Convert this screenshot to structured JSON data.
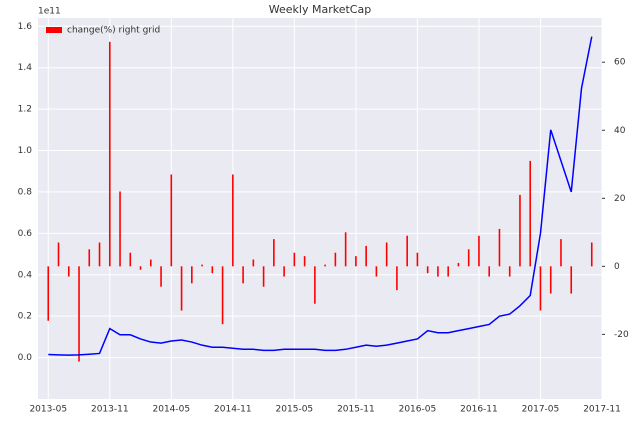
{
  "chart_data": {
    "type": "line",
    "title": "Weekly MarketCap",
    "y_offset_label": "1e11",
    "x": [
      "2013-05",
      "2013-06",
      "2013-07",
      "2013-08",
      "2013-09",
      "2013-10",
      "2013-11",
      "2013-12",
      "2014-01",
      "2014-02",
      "2014-03",
      "2014-04",
      "2014-05",
      "2014-06",
      "2014-07",
      "2014-08",
      "2014-09",
      "2014-10",
      "2014-11",
      "2014-12",
      "2015-01",
      "2015-02",
      "2015-03",
      "2015-04",
      "2015-05",
      "2015-06",
      "2015-07",
      "2015-08",
      "2015-09",
      "2015-10",
      "2015-11",
      "2015-12",
      "2016-01",
      "2016-02",
      "2016-03",
      "2016-04",
      "2016-05",
      "2016-06",
      "2016-07",
      "2016-08",
      "2016-09",
      "2016-10",
      "2016-11",
      "2016-12",
      "2017-01",
      "2017-02",
      "2017-03",
      "2017-04",
      "2017-05",
      "2017-06",
      "2017-07",
      "2017-08",
      "2017-09",
      "2017-10"
    ],
    "series": [
      {
        "color": "#0000ff",
        "axis": "y",
        "values": [
          0.015,
          0.013,
          0.012,
          0.013,
          0.016,
          0.02,
          0.14,
          0.11,
          0.11,
          0.09,
          0.075,
          0.07,
          0.08,
          0.085,
          0.075,
          0.06,
          0.05,
          0.05,
          0.045,
          0.04,
          0.04,
          0.035,
          0.035,
          0.04,
          0.04,
          0.04,
          0.04,
          0.035,
          0.035,
          0.04,
          0.05,
          0.06,
          0.055,
          0.06,
          0.07,
          0.08,
          0.09,
          0.13,
          0.12,
          0.12,
          0.13,
          0.14,
          0.15,
          0.16,
          0.2,
          0.21,
          0.25,
          0.3,
          0.6,
          1.1,
          0.95,
          0.8,
          1.3,
          1.55
        ]
      },
      {
        "name": "change(%) right grid",
        "type": "bar",
        "color": "#ff0000",
        "axis": "y2",
        "values": [
          -16,
          7,
          -3,
          -28,
          5,
          7,
          66,
          22,
          4,
          -1,
          2,
          -6,
          27,
          -13,
          -5,
          0.5,
          -2,
          -17,
          27,
          -5,
          2,
          -6,
          8,
          -3,
          4,
          3,
          -11,
          0.5,
          4,
          10,
          3,
          6,
          -3,
          7,
          -7,
          9,
          4,
          -2,
          -3,
          -3,
          1,
          5,
          9,
          -3,
          11,
          -3,
          21,
          31,
          -13,
          -8,
          8,
          -8,
          0,
          7
        ]
      }
    ],
    "xlim": [
      "2013-04",
      "2017-11"
    ],
    "xticks": [
      "2013-05",
      "2013-11",
      "2014-05",
      "2014-11",
      "2015-05",
      "2015-11",
      "2016-05",
      "2016-11",
      "2017-05",
      "2017-11"
    ],
    "ylim": [
      -0.2,
      1.64
    ],
    "yticks": [
      {
        "value": 0,
        "label": "0.0"
      },
      {
        "value": 0.2,
        "label": "0.2"
      },
      {
        "value": 0.4,
        "label": "0.4"
      },
      {
        "value": 0.6,
        "label": "0.6"
      },
      {
        "value": 0.8,
        "label": "0.8"
      },
      {
        "value": 1.0,
        "label": "1.0"
      },
      {
        "value": 1.2,
        "label": "1.2"
      },
      {
        "value": 1.4,
        "label": "1.4"
      },
      {
        "value": 1.6,
        "label": "1.6"
      }
    ],
    "y2lim": [
      -39,
      73
    ],
    "y2ticks": [
      -20,
      0,
      20,
      40,
      60
    ],
    "grid": true,
    "legend": "upper left"
  }
}
